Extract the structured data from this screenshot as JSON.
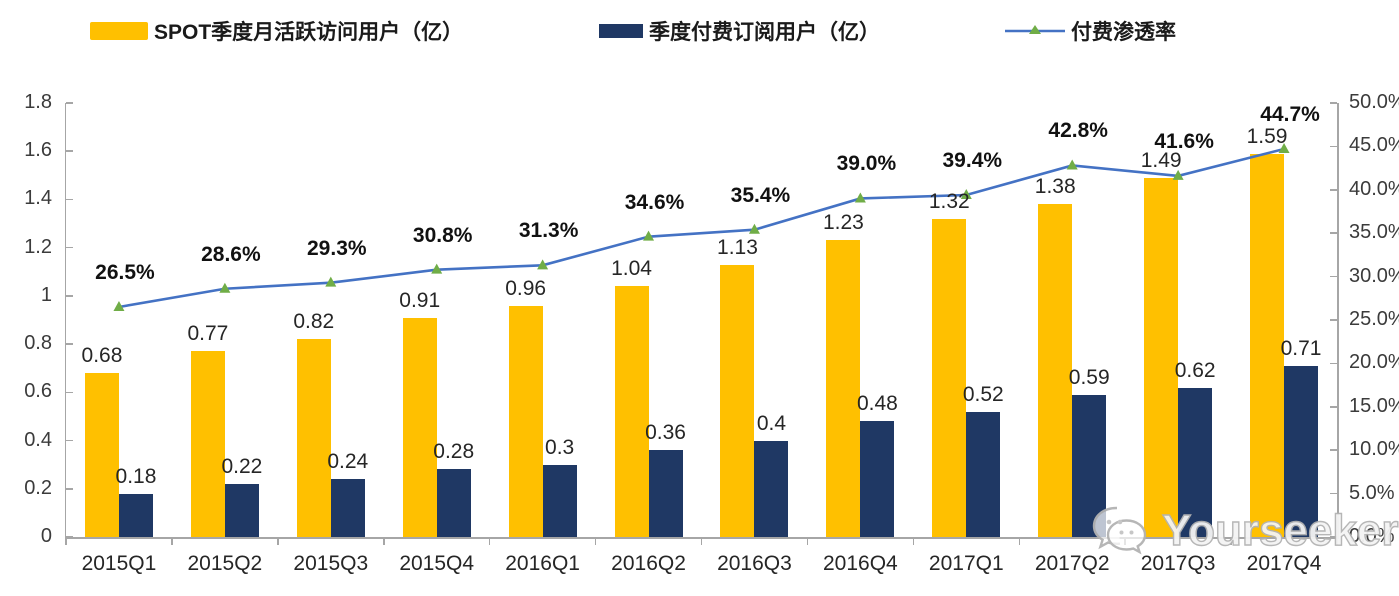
{
  "chart_data": {
    "type": "combo-bar-line",
    "title": "",
    "categories": [
      "2015Q1",
      "2015Q2",
      "2015Q3",
      "2015Q4",
      "2016Q1",
      "2016Q2",
      "2016Q3",
      "2016Q4",
      "2017Q1",
      "2017Q2",
      "2017Q3",
      "2017Q4"
    ],
    "series": [
      {
        "name": "SPOT季度月活跃访问用户（亿）",
        "type": "bar",
        "color": "#FFC000",
        "axis": "left",
        "values": [
          0.68,
          0.77,
          0.82,
          0.91,
          0.96,
          1.04,
          1.13,
          1.23,
          1.32,
          1.38,
          1.49,
          1.59
        ],
        "labels": [
          "0.68",
          "0.77",
          "0.82",
          "0.91",
          "0.96",
          "1.04",
          "1.13",
          "1.23",
          "1.32",
          "1.38",
          "1.49",
          "1.59"
        ]
      },
      {
        "name": "季度付费订阅用户（亿）",
        "type": "bar",
        "color": "#1F3864",
        "axis": "left",
        "values": [
          0.18,
          0.22,
          0.24,
          0.28,
          0.3,
          0.36,
          0.4,
          0.48,
          0.52,
          0.59,
          0.62,
          0.71
        ],
        "labels": [
          "0.18",
          "0.22",
          "0.24",
          "0.28",
          "0.3",
          "0.36",
          "0.4",
          "0.48",
          "0.52",
          "0.59",
          "0.62",
          "0.71"
        ]
      },
      {
        "name": "付费渗透率",
        "type": "line",
        "color": "#4472C4",
        "marker": "triangle",
        "marker_color": "#70AD47",
        "axis": "right",
        "values": [
          26.5,
          28.6,
          29.3,
          30.8,
          31.3,
          34.6,
          35.4,
          39.0,
          39.4,
          42.8,
          41.6,
          44.7
        ],
        "labels": [
          "26.5%",
          "28.6%",
          "29.3%",
          "30.8%",
          "31.3%",
          "34.6%",
          "35.4%",
          "39.0%",
          "39.4%",
          "42.8%",
          "41.6%",
          "44.7%"
        ]
      }
    ],
    "left_axis": {
      "min": 0,
      "max": 1.8,
      "tick_labels": [
        "1.8",
        "1.6",
        "1.4",
        "1.2",
        "1",
        "0.8",
        "0.6",
        "0.4",
        "0.2",
        "0"
      ]
    },
    "right_axis": {
      "min": 0,
      "max": 50,
      "tick_labels": [
        "50.0%",
        "45.0%",
        "40.0%",
        "35.0%",
        "30.0%",
        "25.0%",
        "20.0%",
        "15.0%",
        "10.0%",
        "5.0%",
        "0.0%"
      ]
    },
    "grid": false,
    "legend_position": "top"
  },
  "watermark": {
    "text": "Yourseeker",
    "icon": "wechat-icon"
  }
}
